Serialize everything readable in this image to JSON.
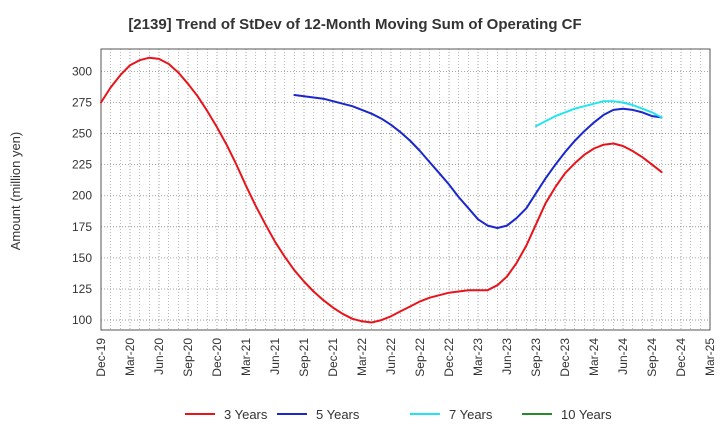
{
  "chart_data": {
    "type": "line",
    "title": "[2139]  Trend of StDev of 12-Month Moving Sum of Operating CF",
    "xlabel": "",
    "ylabel": "Amount (million yen)",
    "ylim": [
      92,
      318
    ],
    "yticks": [
      100,
      125,
      150,
      175,
      200,
      225,
      250,
      275,
      300
    ],
    "x_categories": [
      "Dec-19",
      "Mar-20",
      "Jun-20",
      "Sep-20",
      "Dec-20",
      "Mar-21",
      "Jun-21",
      "Sep-21",
      "Dec-21",
      "Mar-22",
      "Jun-22",
      "Sep-22",
      "Dec-22",
      "Mar-23",
      "Jun-23",
      "Sep-23",
      "Dec-23",
      "Mar-24",
      "Jun-24",
      "Sep-24",
      "Dec-24",
      "Mar-25"
    ],
    "grid": true,
    "legend_position": "bottom",
    "series": [
      {
        "name": "3 Years",
        "color": "#e8141b",
        "points": [
          [
            0,
            275
          ],
          [
            0.33,
            287
          ],
          [
            0.67,
            297
          ],
          [
            1,
            305
          ],
          [
            1.33,
            309
          ],
          [
            1.67,
            311
          ],
          [
            2,
            310
          ],
          [
            2.33,
            306
          ],
          [
            2.67,
            299
          ],
          [
            3,
            290
          ],
          [
            3.33,
            280
          ],
          [
            3.67,
            268
          ],
          [
            4,
            255
          ],
          [
            4.33,
            241
          ],
          [
            4.67,
            225
          ],
          [
            5,
            208
          ],
          [
            5.33,
            192
          ],
          [
            5.67,
            177
          ],
          [
            6,
            163
          ],
          [
            6.33,
            151
          ],
          [
            6.67,
            140
          ],
          [
            7,
            131
          ],
          [
            7.33,
            123
          ],
          [
            7.67,
            116
          ],
          [
            8,
            110
          ],
          [
            8.33,
            105
          ],
          [
            8.67,
            101
          ],
          [
            9,
            99
          ],
          [
            9.33,
            98
          ],
          [
            9.67,
            100
          ],
          [
            10,
            103
          ],
          [
            10.33,
            107
          ],
          [
            10.67,
            111
          ],
          [
            11,
            115
          ],
          [
            11.33,
            118
          ],
          [
            11.67,
            120
          ],
          [
            12,
            122
          ],
          [
            12.33,
            123
          ],
          [
            12.67,
            124
          ],
          [
            13,
            124
          ],
          [
            13.33,
            124
          ],
          [
            13.67,
            128
          ],
          [
            14,
            135
          ],
          [
            14.33,
            146
          ],
          [
            14.67,
            160
          ],
          [
            15,
            177
          ],
          [
            15.33,
            194
          ],
          [
            15.67,
            207
          ],
          [
            16,
            218
          ],
          [
            16.33,
            226
          ],
          [
            16.67,
            233
          ],
          [
            17,
            238
          ],
          [
            17.33,
            241
          ],
          [
            17.67,
            242
          ],
          [
            18,
            240
          ],
          [
            18.33,
            236
          ],
          [
            18.67,
            231
          ],
          [
            19,
            225
          ],
          [
            19.33,
            219
          ]
        ]
      },
      {
        "name": "5 Years",
        "color": "#1a27cc",
        "points": [
          [
            6.67,
            281
          ],
          [
            7,
            280
          ],
          [
            7.33,
            279
          ],
          [
            7.67,
            278
          ],
          [
            8,
            276
          ],
          [
            8.33,
            274
          ],
          [
            8.67,
            272
          ],
          [
            9,
            269
          ],
          [
            9.33,
            266
          ],
          [
            9.67,
            262
          ],
          [
            10,
            257
          ],
          [
            10.33,
            251
          ],
          [
            10.67,
            244
          ],
          [
            11,
            236
          ],
          [
            11.33,
            227
          ],
          [
            11.67,
            218
          ],
          [
            12,
            209
          ],
          [
            12.33,
            199
          ],
          [
            12.67,
            190
          ],
          [
            13,
            181
          ],
          [
            13.33,
            176
          ],
          [
            13.67,
            174
          ],
          [
            14,
            176
          ],
          [
            14.33,
            182
          ],
          [
            14.67,
            190
          ],
          [
            15,
            202
          ],
          [
            15.33,
            214
          ],
          [
            15.67,
            225
          ],
          [
            16,
            235
          ],
          [
            16.33,
            244
          ],
          [
            16.67,
            252
          ],
          [
            17,
            259
          ],
          [
            17.33,
            265
          ],
          [
            17.67,
            269
          ],
          [
            18,
            270
          ],
          [
            18.33,
            269
          ],
          [
            18.67,
            267
          ],
          [
            19,
            264
          ],
          [
            19.33,
            263
          ]
        ]
      },
      {
        "name": "7 Years",
        "color": "#22e5f2",
        "points": [
          [
            15,
            256
          ],
          [
            15.33,
            260
          ],
          [
            15.67,
            264
          ],
          [
            16,
            267
          ],
          [
            16.33,
            270
          ],
          [
            16.67,
            272
          ],
          [
            17,
            274
          ],
          [
            17.33,
            276
          ],
          [
            17.67,
            276
          ],
          [
            18,
            275
          ],
          [
            18.33,
            273
          ],
          [
            18.67,
            270
          ],
          [
            19,
            267
          ],
          [
            19.33,
            263
          ]
        ]
      },
      {
        "name": "10 Years",
        "color": "#2a8a2a",
        "points": []
      }
    ]
  }
}
